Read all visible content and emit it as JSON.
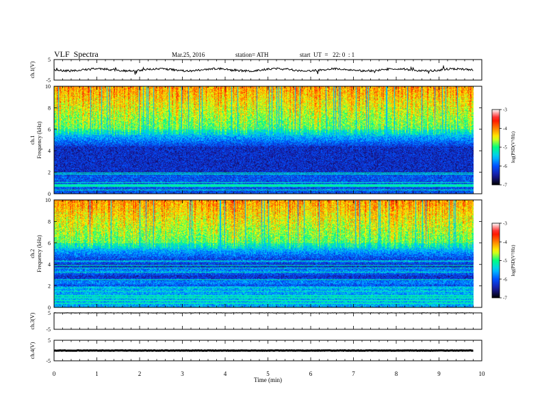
{
  "chart_data": [
    {
      "type": "line",
      "panel": "ch1_waveform",
      "ylabel": "ch.1(V)",
      "ylim": [
        -5,
        5
      ],
      "y_ticks": [
        "5",
        "-5"
      ],
      "baseline": 0,
      "line_color": "#000000"
    },
    {
      "type": "heatmap",
      "panel": "ch1_spectrogram",
      "ylabel": "Frequency (kHz)",
      "channel_label": "ch.1",
      "ylim": [
        0,
        10
      ],
      "y_ticks": [
        "0",
        "2",
        "4",
        "6",
        "8",
        "10"
      ]
    },
    {
      "type": "heatmap",
      "panel": "ch2_spectrogram",
      "ylabel": "Frequency (kHz)",
      "channel_label": "ch.2",
      "ylim": [
        0,
        10
      ],
      "y_ticks": [
        "0",
        "2",
        "4",
        "6",
        "8",
        "10"
      ]
    },
    {
      "type": "line",
      "panel": "ch3_waveform",
      "ylabel": "ch.3(V)",
      "ylim": [
        -5,
        5
      ],
      "y_ticks": [
        "5",
        "-5"
      ],
      "baseline": 5,
      "line_color": "#000000"
    },
    {
      "type": "line",
      "panel": "ch4_waveform",
      "ylabel": "ch.4(V)",
      "ylim": [
        -5,
        5
      ],
      "y_ticks": [
        "5",
        "-5"
      ],
      "baseline": 0,
      "line_color": "#000000"
    }
  ],
  "header": {
    "title": "VLF  Spectra",
    "date": "Mar.25, 2016",
    "station": "station= ATH",
    "start": "start  UT  =   22: 0  : 1"
  },
  "x_axis": {
    "label": "Time  (min)",
    "range": [
      0,
      10
    ],
    "ticks": [
      "0",
      "1",
      "2",
      "3",
      "4",
      "5",
      "6",
      "7",
      "8",
      "9",
      "10"
    ],
    "data_end": 9.8
  },
  "colorbar": {
    "label": "log(PSD(V²/Hz)",
    "range": [
      -7,
      -3
    ],
    "ticks": [
      "-3",
      "-4",
      "-5",
      "-6",
      "-7"
    ],
    "colormap": [
      "#000000",
      "#1a1aa0",
      "#0050ff",
      "#00c8ff",
      "#00ff80",
      "#ffff00",
      "#ff8000",
      "#ff0000",
      "#ffffff"
    ]
  }
}
